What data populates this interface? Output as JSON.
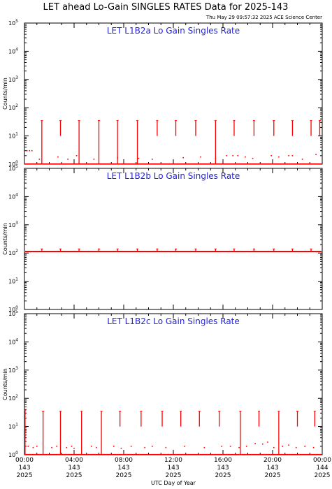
{
  "page": {
    "title": "LET ahead Lo-Gain SINGLES RATES Data for 2025-143",
    "timestamp": "Thu May 29 09:57:32 2025 ACE Science Center"
  },
  "chart_data": [
    {
      "type": "scatter",
      "title": "LET L1B2a Lo Gain Singles Rate",
      "ylabel": "Counts/min",
      "xlabel": "UTC Day of Year",
      "yscale": "log",
      "ylim": [
        1,
        100000
      ],
      "xlim": [
        0,
        24
      ],
      "color": "#ff0000",
      "series": [
        {
          "baseline": 1,
          "scatter_points": [
            {
              "x": 0.2,
              "y": 3
            },
            {
              "x": 0.4,
              "y": 3
            },
            {
              "x": 0.6,
              "y": 3
            },
            {
              "x": 1.2,
              "y": 1.5
            },
            {
              "x": 2.7,
              "y": 1.8
            },
            {
              "x": 3.5,
              "y": 1.5
            },
            {
              "x": 4.2,
              "y": 2
            },
            {
              "x": 5.6,
              "y": 1.5
            },
            {
              "x": 7.5,
              "y": 1.7
            },
            {
              "x": 9.2,
              "y": 1.6
            },
            {
              "x": 10.3,
              "y": 1.5
            },
            {
              "x": 12.8,
              "y": 1.7
            },
            {
              "x": 14.2,
              "y": 1.8
            },
            {
              "x": 15.4,
              "y": 1.6
            },
            {
              "x": 16.3,
              "y": 2
            },
            {
              "x": 16.8,
              "y": 2
            },
            {
              "x": 17.2,
              "y": 2
            },
            {
              "x": 17.8,
              "y": 1.8
            },
            {
              "x": 18.4,
              "y": 1.6
            },
            {
              "x": 19.9,
              "y": 2
            },
            {
              "x": 20.5,
              "y": 1.8
            },
            {
              "x": 21.3,
              "y": 2
            },
            {
              "x": 21.6,
              "y": 2
            },
            {
              "x": 22.4,
              "y": 1.5
            },
            {
              "x": 23.5,
              "y": 2.2
            }
          ],
          "spikes": [
            {
              "x": 1.4,
              "y": 35,
              "base": 1
            },
            {
              "x": 2.9,
              "y": 35,
              "base": 10
            },
            {
              "x": 4.4,
              "y": 35,
              "base": 1
            },
            {
              "x": 6.0,
              "y": 35,
              "base": 1
            },
            {
              "x": 7.5,
              "y": 35,
              "base": 1
            },
            {
              "x": 9.1,
              "y": 35,
              "base": 1
            },
            {
              "x": 10.7,
              "y": 35,
              "base": 10
            },
            {
              "x": 12.2,
              "y": 35,
              "base": 10
            },
            {
              "x": 13.8,
              "y": 35,
              "base": 10
            },
            {
              "x": 15.4,
              "y": 35,
              "base": 1
            },
            {
              "x": 16.9,
              "y": 35,
              "base": 10
            },
            {
              "x": 18.5,
              "y": 35,
              "base": 10
            },
            {
              "x": 20.1,
              "y": 35,
              "base": 10
            },
            {
              "x": 21.6,
              "y": 35,
              "base": 10
            },
            {
              "x": 23.1,
              "y": 35,
              "base": 10
            },
            {
              "x": 23.8,
              "y": 35,
              "base": 10
            }
          ]
        }
      ]
    },
    {
      "type": "scatter",
      "title": "LET L1B2b Lo Gain Singles Rate",
      "ylabel": "Counts/min",
      "xlabel": "UTC Day of Year",
      "yscale": "log",
      "ylim": [
        1,
        100000
      ],
      "xlim": [
        0,
        24
      ],
      "color": "#ff0000",
      "series": [
        {
          "baseline": 110,
          "scatter_points": [],
          "spikes": [
            {
              "x": 1.4,
              "y": 140,
              "base": 110
            },
            {
              "x": 2.9,
              "y": 140,
              "base": 110
            },
            {
              "x": 4.4,
              "y": 140,
              "base": 110
            },
            {
              "x": 6.0,
              "y": 140,
              "base": 110
            },
            {
              "x": 7.5,
              "y": 140,
              "base": 110
            },
            {
              "x": 9.1,
              "y": 140,
              "base": 110
            },
            {
              "x": 10.7,
              "y": 140,
              "base": 110
            },
            {
              "x": 12.2,
              "y": 140,
              "base": 110
            },
            {
              "x": 13.8,
              "y": 140,
              "base": 110
            },
            {
              "x": 15.4,
              "y": 140,
              "base": 110
            },
            {
              "x": 16.9,
              "y": 140,
              "base": 110
            },
            {
              "x": 18.5,
              "y": 140,
              "base": 110
            },
            {
              "x": 20.1,
              "y": 140,
              "base": 110
            },
            {
              "x": 21.6,
              "y": 140,
              "base": 110
            },
            {
              "x": 23.1,
              "y": 140,
              "base": 110
            }
          ]
        }
      ]
    },
    {
      "type": "scatter",
      "title": "LET L1B2c Lo Gain Singles Rate",
      "ylabel": "Counts/min",
      "xlabel": "UTC Day of Year",
      "yscale": "log",
      "ylim": [
        1,
        100000
      ],
      "xlim": [
        0,
        24
      ],
      "color": "#ff0000",
      "series": [
        {
          "baseline": 1,
          "scatter_points": [
            {
              "x": 0.3,
              "y": 2
            },
            {
              "x": 0.7,
              "y": 1.8
            },
            {
              "x": 1.0,
              "y": 2
            },
            {
              "x": 2.2,
              "y": 1.8
            },
            {
              "x": 2.6,
              "y": 2
            },
            {
              "x": 3.4,
              "y": 1.8
            },
            {
              "x": 3.8,
              "y": 2
            },
            {
              "x": 4.0,
              "y": 1.7
            },
            {
              "x": 5.4,
              "y": 2
            },
            {
              "x": 5.8,
              "y": 1.8
            },
            {
              "x": 7.2,
              "y": 2
            },
            {
              "x": 7.8,
              "y": 1.7
            },
            {
              "x": 8.6,
              "y": 2
            },
            {
              "x": 9.7,
              "y": 1.8
            },
            {
              "x": 10.3,
              "y": 2
            },
            {
              "x": 11.4,
              "y": 1.8
            },
            {
              "x": 12.9,
              "y": 2
            },
            {
              "x": 14.5,
              "y": 1.8
            },
            {
              "x": 15.9,
              "y": 2
            },
            {
              "x": 16.6,
              "y": 2
            },
            {
              "x": 17.3,
              "y": 1.8
            },
            {
              "x": 17.9,
              "y": 2
            },
            {
              "x": 18.6,
              "y": 2.5
            },
            {
              "x": 19.2,
              "y": 2.4
            },
            {
              "x": 19.6,
              "y": 2.8
            },
            {
              "x": 20.1,
              "y": 1.8
            },
            {
              "x": 20.8,
              "y": 2
            },
            {
              "x": 21.3,
              "y": 2.2
            },
            {
              "x": 21.9,
              "y": 1.8
            },
            {
              "x": 22.6,
              "y": 2
            },
            {
              "x": 23.3,
              "y": 1.8
            }
          ],
          "spikes": [
            {
              "x": 0.05,
              "y": 38,
              "base": 1
            },
            {
              "x": 1.5,
              "y": 35,
              "base": 1
            },
            {
              "x": 2.9,
              "y": 35,
              "base": 1
            },
            {
              "x": 4.6,
              "y": 35,
              "base": 1
            },
            {
              "x": 6.2,
              "y": 35,
              "base": 1
            },
            {
              "x": 7.7,
              "y": 35,
              "base": 10
            },
            {
              "x": 9.4,
              "y": 35,
              "base": 10
            },
            {
              "x": 11.1,
              "y": 35,
              "base": 10
            },
            {
              "x": 12.6,
              "y": 35,
              "base": 10
            },
            {
              "x": 14.1,
              "y": 35,
              "base": 10
            },
            {
              "x": 15.7,
              "y": 35,
              "base": 10
            },
            {
              "x": 17.4,
              "y": 35,
              "base": 1
            },
            {
              "x": 18.9,
              "y": 35,
              "base": 10
            },
            {
              "x": 20.5,
              "y": 35,
              "base": 1
            },
            {
              "x": 22.0,
              "y": 35,
              "base": 10
            },
            {
              "x": 23.4,
              "y": 35,
              "base": 10
            }
          ]
        }
      ]
    }
  ],
  "yaxis": {
    "ticks": [
      {
        "base": "10",
        "exp": "0"
      },
      {
        "base": "10",
        "exp": "1"
      },
      {
        "base": "10",
        "exp": "2"
      },
      {
        "base": "10",
        "exp": "3"
      },
      {
        "base": "10",
        "exp": "4"
      },
      {
        "base": "10",
        "exp": "5"
      }
    ]
  },
  "xaxis": {
    "label": "UTC Day of Year",
    "ticks": [
      {
        "time": "00:00",
        "doy": "143",
        "year": "2025"
      },
      {
        "time": "04:00",
        "doy": "143",
        "year": "2025"
      },
      {
        "time": "08:00",
        "doy": "143",
        "year": "2025"
      },
      {
        "time": "12:00",
        "doy": "143",
        "year": "2025"
      },
      {
        "time": "16:00",
        "doy": "143",
        "year": "2025"
      },
      {
        "time": "20:00",
        "doy": "143",
        "year": "2025"
      },
      {
        "time": "00:00",
        "doy": "144",
        "year": "2025"
      }
    ]
  }
}
